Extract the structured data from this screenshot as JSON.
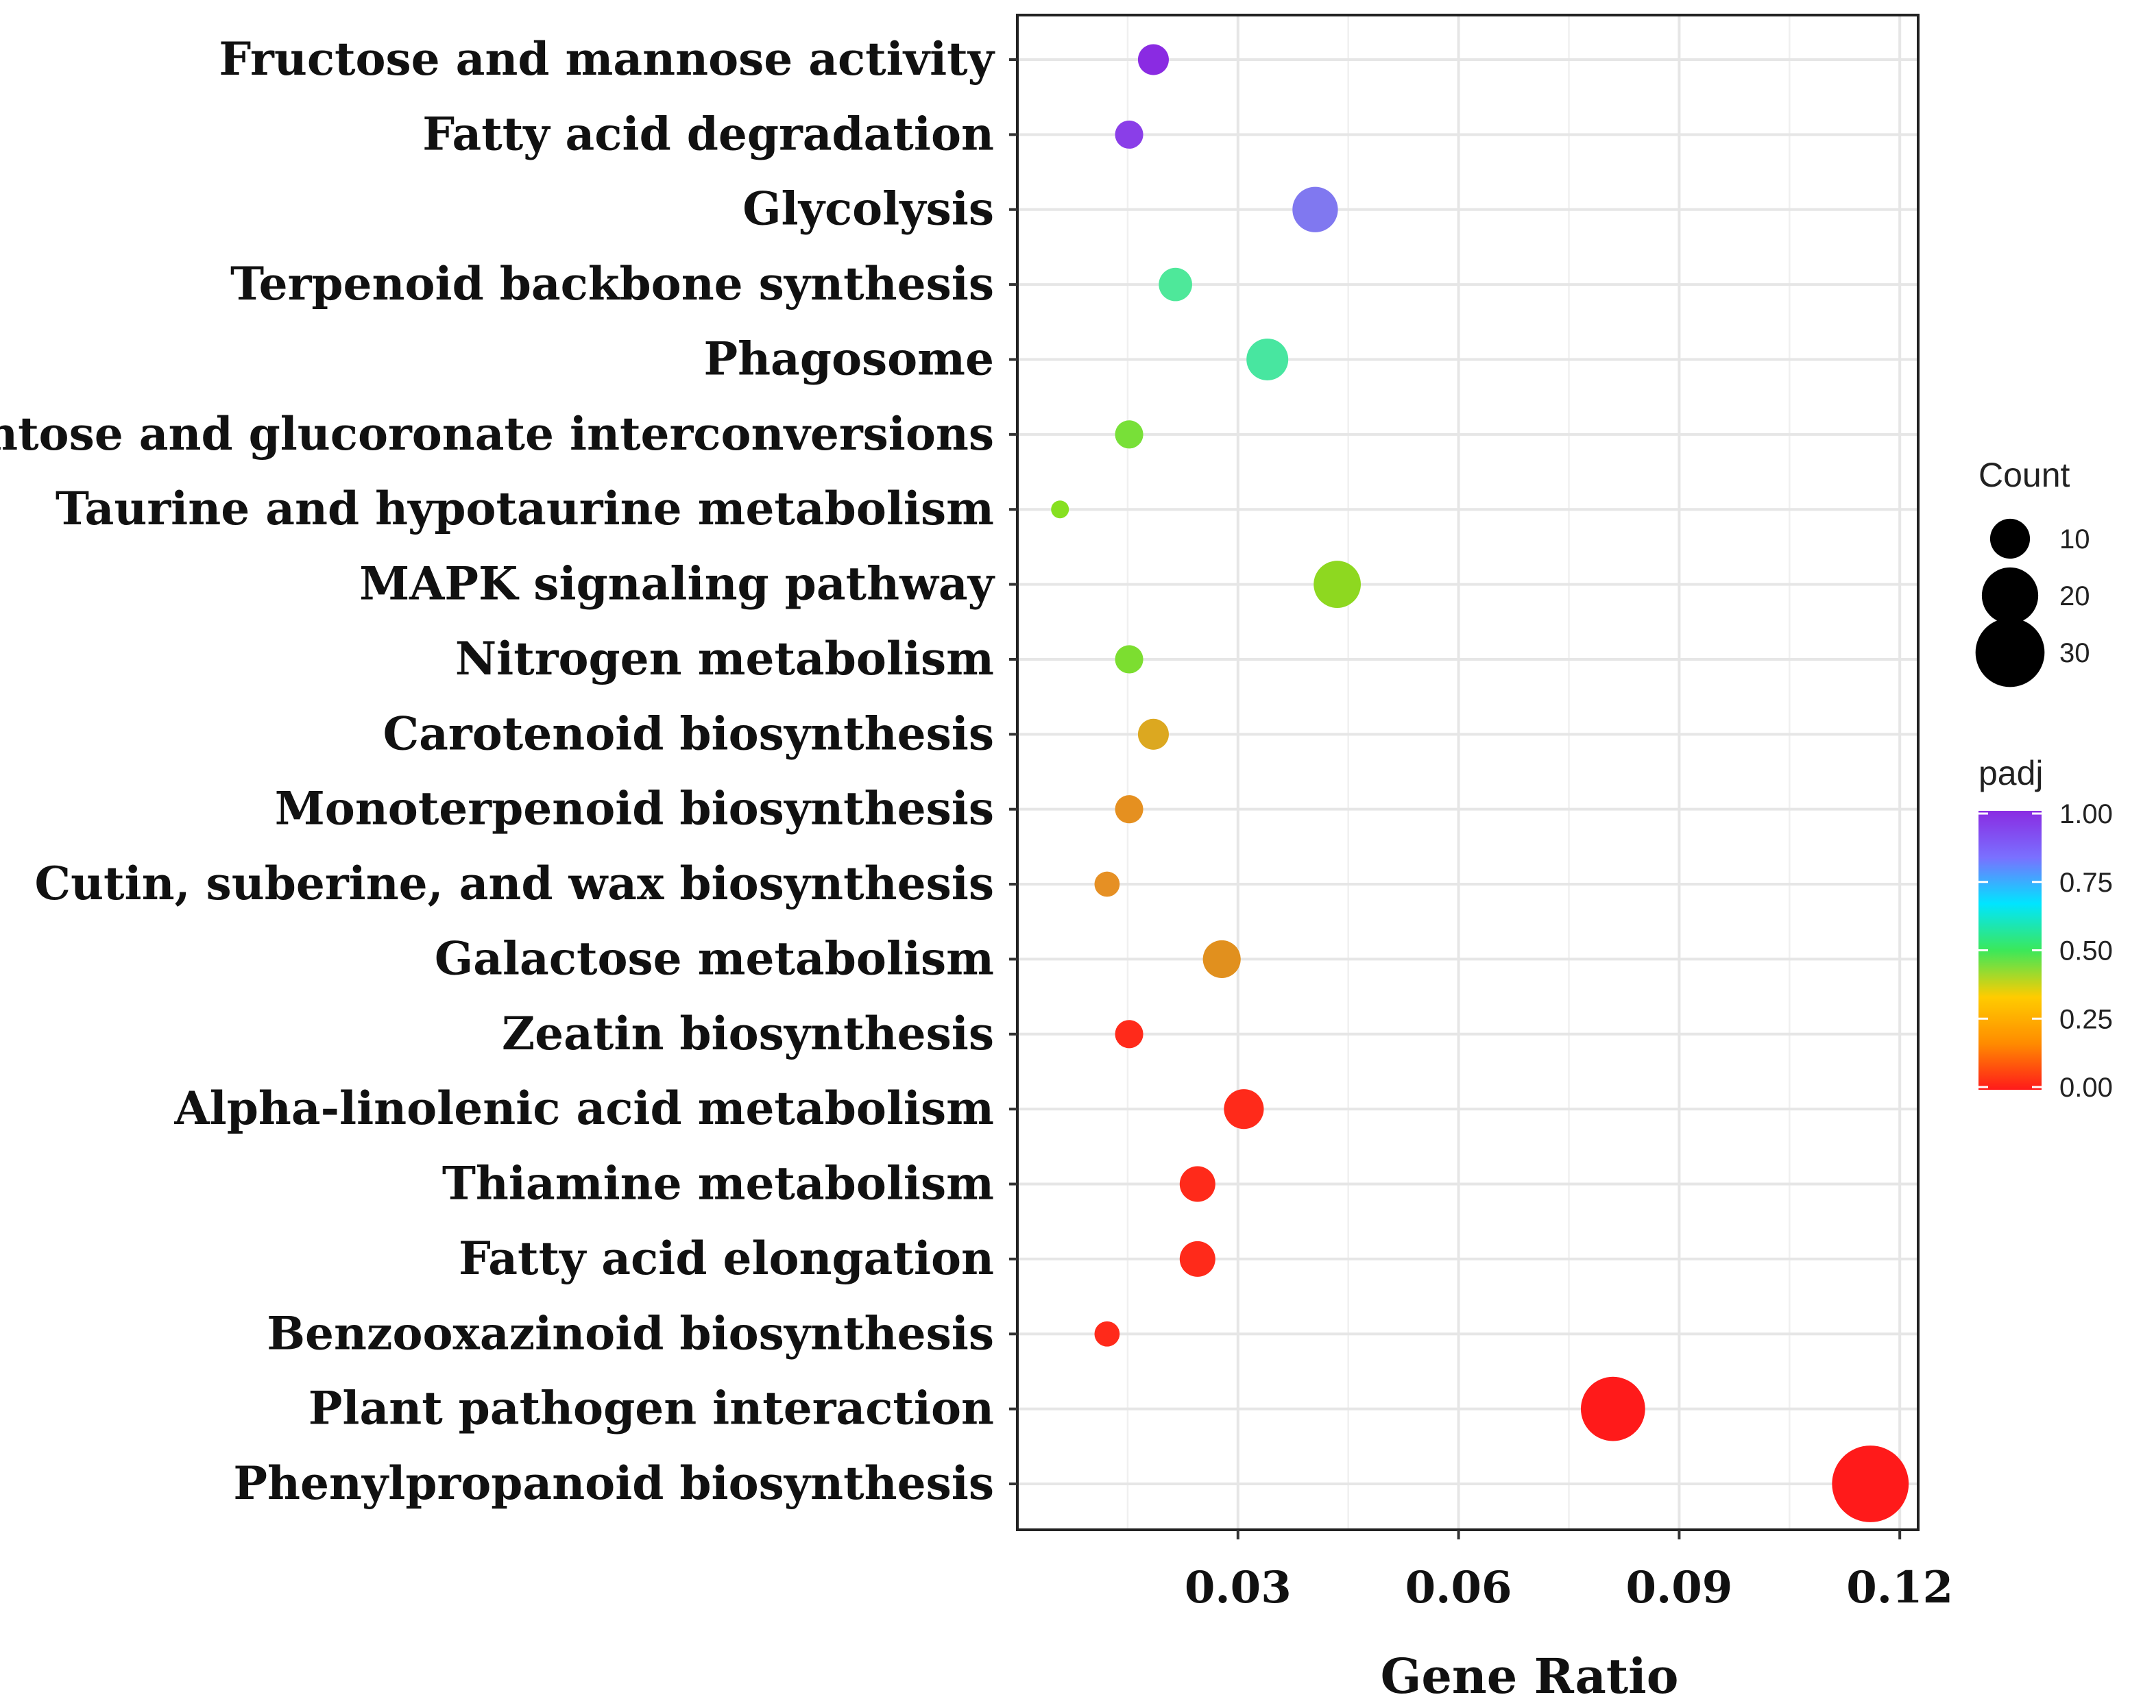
{
  "chart_data": {
    "type": "scatter",
    "subtype": "bubble",
    "title": "",
    "xlabel": "Gene Ratio",
    "ylabel": "",
    "xlim": [
      0.0,
      0.1225
    ],
    "x_ticks": [
      0.03,
      0.06,
      0.09,
      0.12
    ],
    "x_tick_labels": [
      "0.03",
      "0.06",
      "0.09",
      "0.12"
    ],
    "grid": true,
    "categories": [
      "Fructose and mannose activity",
      "Fatty acid degradation",
      "Glycolysis",
      "Terpenoid backbone synthesis",
      "Phagosome",
      "Pentose and glucoronate interconversions",
      "Taurine and hypotaurine metabolism",
      "MAPK signaling pathway",
      "Nitrogen metabolism",
      "Carotenoid biosynthesis",
      "Monoterpenoid biosynthesis",
      "Cutin, suberine, and wax biosynthesis",
      "Galactose metabolism",
      "Zeatin biosynthesis",
      "Alpha-linolenic acid metabolism",
      "Thiamine metabolism",
      "Fatty acid elongation",
      "Benzooxazinoid biosynthesis",
      "Plant pathogen interaction",
      "Phenylpropanoid biosynthesis"
    ],
    "gene_ratio": [
      0.0185,
      0.0152,
      0.0405,
      0.0215,
      0.034,
      0.0152,
      0.0058,
      0.0435,
      0.0152,
      0.0185,
      0.0152,
      0.0122,
      0.0278,
      0.0152,
      0.0308,
      0.0245,
      0.0245,
      0.0122,
      0.081,
      0.116
    ],
    "count": [
      6,
      5,
      13,
      7,
      11,
      5,
      2,
      14,
      5,
      6,
      5,
      4,
      9,
      5,
      10,
      8,
      8,
      4,
      26,
      37
    ],
    "padj": [
      0.97,
      0.95,
      0.84,
      0.45,
      0.43,
      0.32,
      0.28,
      0.27,
      0.26,
      0.16,
      0.13,
      0.11,
      0.1,
      0.01,
      0.01,
      0.01,
      0.01,
      0.01,
      0.0,
      0.0
    ],
    "colors": [
      "#8a2be2",
      "#8a3ee8",
      "#8078f0",
      "#4ee89a",
      "#48e6a0",
      "#78e038",
      "#86e020",
      "#8ed820",
      "#7cde30",
      "#dca820",
      "#e59020",
      "#e69024",
      "#e1901e",
      "#ff2a1a",
      "#ff2a1a",
      "#ff2a1a",
      "#ff2a1a",
      "#ff2a1a",
      "#ff1a1a",
      "#ff1a1a"
    ],
    "legend": {
      "size_title": "Count",
      "size_values": [
        10,
        20,
        30
      ],
      "size_labels": [
        "10",
        "20",
        "30"
      ],
      "color_title": "padj",
      "color_ticks": [
        "1.00",
        "0.75",
        "0.50",
        "0.25",
        "0.00"
      ],
      "color_stops": [
        "#8a2be2",
        "#7a70ff",
        "#00e5ff",
        "#3be85a",
        "#ffcc00",
        "#ff8c00",
        "#ff1a1a"
      ],
      "placement": "right"
    }
  }
}
